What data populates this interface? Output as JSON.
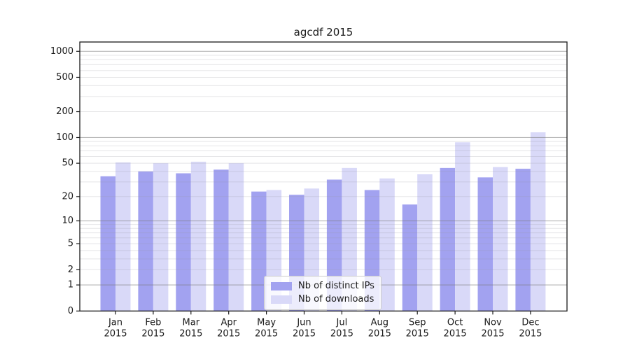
{
  "chart_data": {
    "type": "bar",
    "title": "agcdf 2015",
    "categories": [
      "Jan",
      "Feb",
      "Mar",
      "Apr",
      "May",
      "Jun",
      "Jul",
      "Aug",
      "Sep",
      "Oct",
      "Nov",
      "Dec"
    ],
    "category_year_line": "2015",
    "series": [
      {
        "name": "Nb of distinct IPs",
        "color": "#a2a2f0",
        "values": [
          35,
          40,
          38,
          42,
          23,
          21,
          32,
          24,
          16,
          44,
          34,
          43
        ]
      },
      {
        "name": "Nb of downloads",
        "color": "#d9d9f8",
        "values": [
          51,
          50,
          52,
          50,
          24,
          25,
          44,
          33,
          37,
          88,
          45,
          115
        ]
      }
    ],
    "y_axis": {
      "scale": "log1p",
      "ticks": [
        0,
        1,
        2,
        5,
        10,
        20,
        50,
        100,
        200,
        500,
        1000
      ],
      "major_ticks": [
        1,
        10,
        100,
        1000
      ],
      "ylim": [
        0,
        1284
      ]
    },
    "xlabel": "",
    "ylabel": "",
    "grid": true,
    "legend_position": "lower center",
    "colors": {
      "major_grid": "#7a7a7a",
      "minor_grid": "#9898a0",
      "axis": "#1a1a1a",
      "tick_text": "#1a1a1a",
      "background": "#ffffff"
    }
  }
}
